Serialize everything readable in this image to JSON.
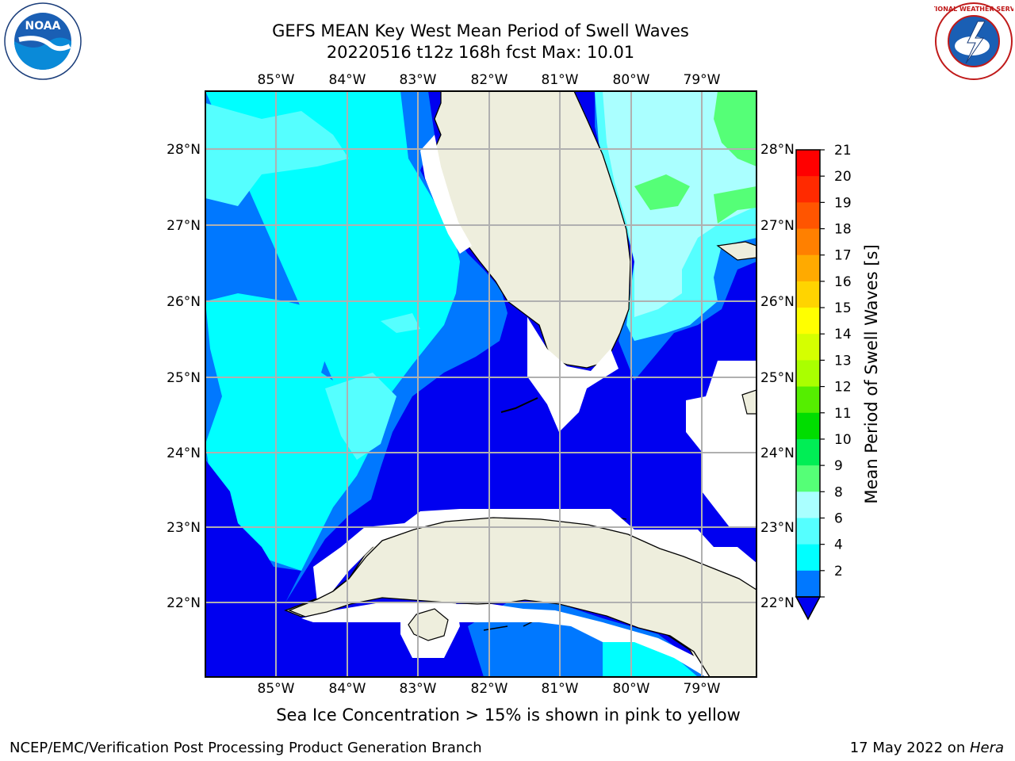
{
  "title": {
    "line1": "GEFS MEAN Key West Mean Period of Swell Waves",
    "line2": "20220516 t12z 168h fcst   Max: 10.01"
  },
  "map": {
    "lon_labels": [
      "85°W",
      "84°W",
      "83°W",
      "82°W",
      "81°W",
      "80°W",
      "79°W"
    ],
    "lat_labels": [
      "28°N",
      "27°N",
      "26°N",
      "25°N",
      "24°N",
      "23°N",
      "22°N"
    ],
    "colors": {
      "ocean_deep": "#0000f0",
      "band_2_4": "#0078ff",
      "band_4_6": "#00ffff",
      "band_6_8": "#55ffff",
      "band_8_9": "#aaffff",
      "band_9_10": "#55ff77",
      "land": "#eeeedd",
      "grid": "#b0b0b0"
    }
  },
  "colorbar": {
    "label": "Mean Period of Swell Waves [s]",
    "ticks": [
      "21",
      "20",
      "19",
      "18",
      "17",
      "16",
      "15",
      "14",
      "13",
      "12",
      "11",
      "10",
      "9",
      "8",
      "6",
      "4",
      "2"
    ],
    "colors": [
      "#ff0000",
      "#ff2a00",
      "#ff5500",
      "#ff8000",
      "#ffaa00",
      "#ffd400",
      "#ffff00",
      "#d5ff00",
      "#aaff00",
      "#55ee00",
      "#00dd00",
      "#00ee55",
      "#55ff77",
      "#aaffff",
      "#55ffff",
      "#00ffff",
      "#0078ff"
    ],
    "extend_color": "#0000f0"
  },
  "footer": {
    "sea_ice_note": "Sea Ice Concentration > 15% is shown in pink to yellow",
    "left": "NCEP/EMC/Verification Post Processing Product Generation Branch",
    "right_date": "17 May 2022 on ",
    "right_host": "Hera"
  },
  "logos": {
    "noaa": "NOAA",
    "nws_text": "NATIONAL WEATHER SERVICE"
  }
}
